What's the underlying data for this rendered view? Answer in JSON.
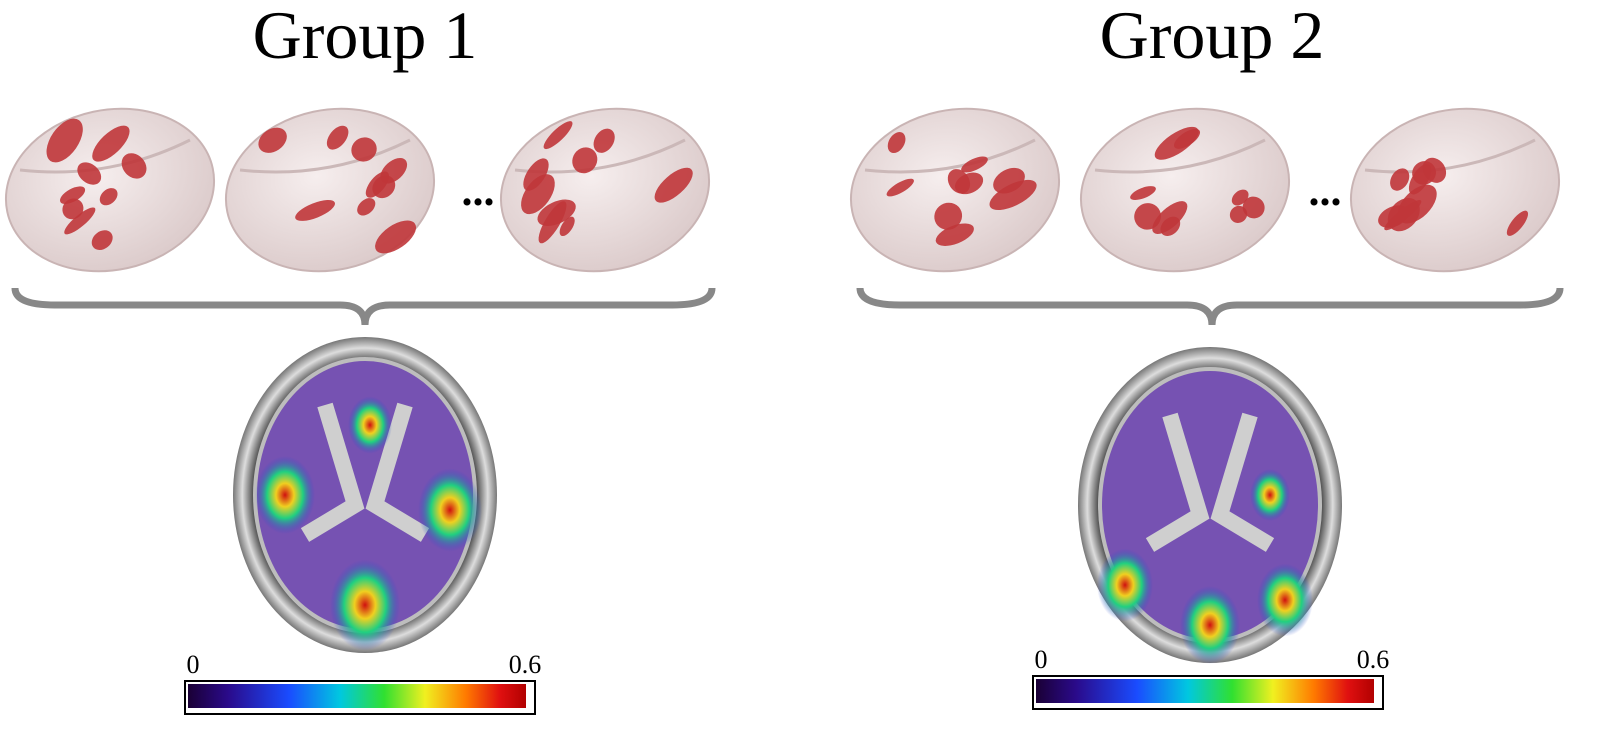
{
  "panels": [
    {
      "title": "Group 1",
      "ellipsis": "...",
      "colorbar": {
        "min": "0",
        "max": "0.6"
      }
    },
    {
      "title": "Group 2",
      "ellipsis": "...",
      "colorbar": {
        "min": "0",
        "max": "0.6"
      }
    }
  ]
}
